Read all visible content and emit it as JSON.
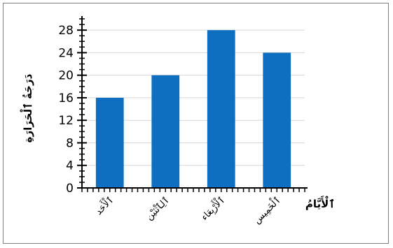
{
  "chart_data": {
    "type": "bar",
    "categories": [
      "ٱلْأَحَد",
      "ٱلِٱثْنَيْن",
      "ٱلْأَرْبِعَاء",
      "ٱلْخَمِيس"
    ],
    "values": [
      16,
      20,
      28,
      24
    ],
    "title": "",
    "xlabel": "ٱلْأَيَّامُ",
    "ylabel": "دَرَجَةُ ٱلْحَرَارَةِ",
    "ylim": [
      0,
      30
    ],
    "yticks": [
      0,
      4,
      8,
      12,
      16,
      20,
      24,
      28
    ],
    "grid": true,
    "bar_color": "#0e6fc1",
    "grid_color": "#d9d9d9"
  }
}
